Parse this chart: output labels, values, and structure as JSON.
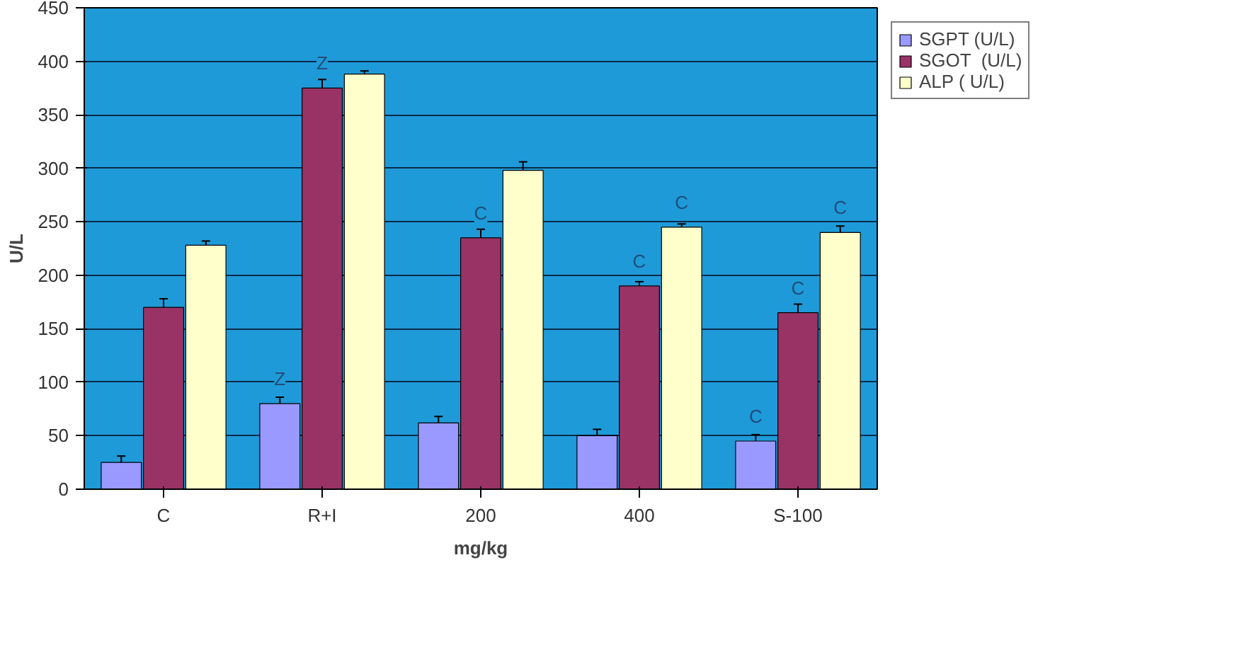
{
  "chart_data": {
    "type": "bar",
    "xlabel": "mg/kg",
    "ylabel": "U/L",
    "categories": [
      "C",
      "R+I",
      "200",
      "400",
      "S-100"
    ],
    "series": [
      {
        "name": "SGPT (U/L)",
        "color": "#9999ff",
        "values": [
          25,
          80,
          62,
          50,
          45
        ],
        "errors": [
          6,
          6,
          6,
          6,
          6
        ],
        "value_labels": [
          null,
          "Z",
          null,
          null,
          "C"
        ]
      },
      {
        "name": "SGOT  (U/L)",
        "color": "#993366",
        "values": [
          170,
          375,
          235,
          190,
          165
        ],
        "errors": [
          8,
          8,
          8,
          4,
          8
        ],
        "value_labels": [
          null,
          "Z",
          "C",
          "C",
          "C"
        ]
      },
      {
        "name": "ALP ( U/L)",
        "color": "#ffffcc",
        "values": [
          228,
          388,
          298,
          245,
          240
        ],
        "errors": [
          4,
          3,
          8,
          3,
          6
        ],
        "value_labels": [
          null,
          null,
          null,
          "C",
          "C"
        ]
      }
    ],
    "ylim": [
      0,
      450
    ],
    "yticks": [
      0,
      50,
      100,
      150,
      200,
      250,
      300,
      350,
      400,
      450
    ],
    "grid": "y",
    "legend": "right"
  }
}
